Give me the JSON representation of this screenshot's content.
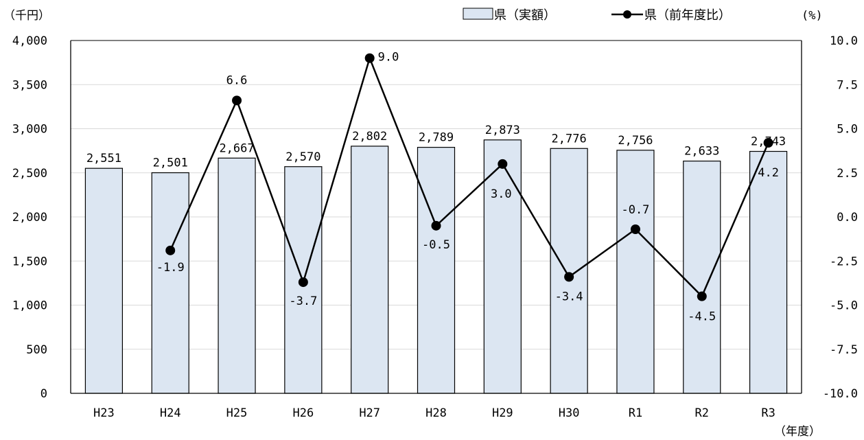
{
  "chart_data": {
    "type": "bar",
    "categories": [
      "H23",
      "H24",
      "H25",
      "H26",
      "H27",
      "H28",
      "H29",
      "H30",
      "R1",
      "R2",
      "R3"
    ],
    "series": [
      {
        "name": "県（実額）",
        "type": "bar",
        "axis": "left",
        "values": [
          2551,
          2501,
          2667,
          2570,
          2802,
          2789,
          2873,
          2776,
          2756,
          2633,
          2743
        ],
        "labels": [
          "2,551",
          "2,501",
          "2,667",
          "2,570",
          "2,802",
          "2,789",
          "2,873",
          "2,776",
          "2,756",
          "2,633",
          "2,743"
        ]
      },
      {
        "name": "県（前年度比）",
        "type": "line",
        "axis": "right",
        "values": [
          null,
          -1.9,
          6.6,
          -3.7,
          9.0,
          -0.5,
          3.0,
          -3.4,
          -0.7,
          -4.5,
          4.2
        ],
        "labels": [
          "",
          "-1.9",
          "6.6",
          "-3.7",
          "9.0",
          "-0.5",
          "3.0",
          "-3.4",
          "-0.7",
          "-4.5",
          "4.2"
        ]
      }
    ],
    "y_left": {
      "label": "（千円）",
      "ylim": [
        0,
        4000
      ],
      "ticks": [
        0,
        500,
        1000,
        1500,
        2000,
        2500,
        3000,
        3500,
        4000
      ],
      "tick_labels": [
        "0",
        "500",
        "1,000",
        "1,500",
        "2,000",
        "2,500",
        "3,000",
        "3,500",
        "4,000"
      ]
    },
    "y_right": {
      "label": "(%)",
      "ylim": [
        -10,
        10
      ],
      "ticks": [
        -10,
        -7.5,
        -5,
        -2.5,
        0,
        2.5,
        5,
        7.5,
        10
      ],
      "tick_labels": [
        "-10.0",
        "-7.5",
        "-5.0",
        "-2.5",
        "0.0",
        "2.5",
        "5.0",
        "7.5",
        "10.0"
      ]
    },
    "xlabel": "（年度）",
    "grid": true,
    "legend_position": "top-right",
    "colors": {
      "bar_fill": "#dce6f2",
      "bar_stroke": "#000000",
      "line": "#000000",
      "grid": "#d9d9d9"
    }
  }
}
